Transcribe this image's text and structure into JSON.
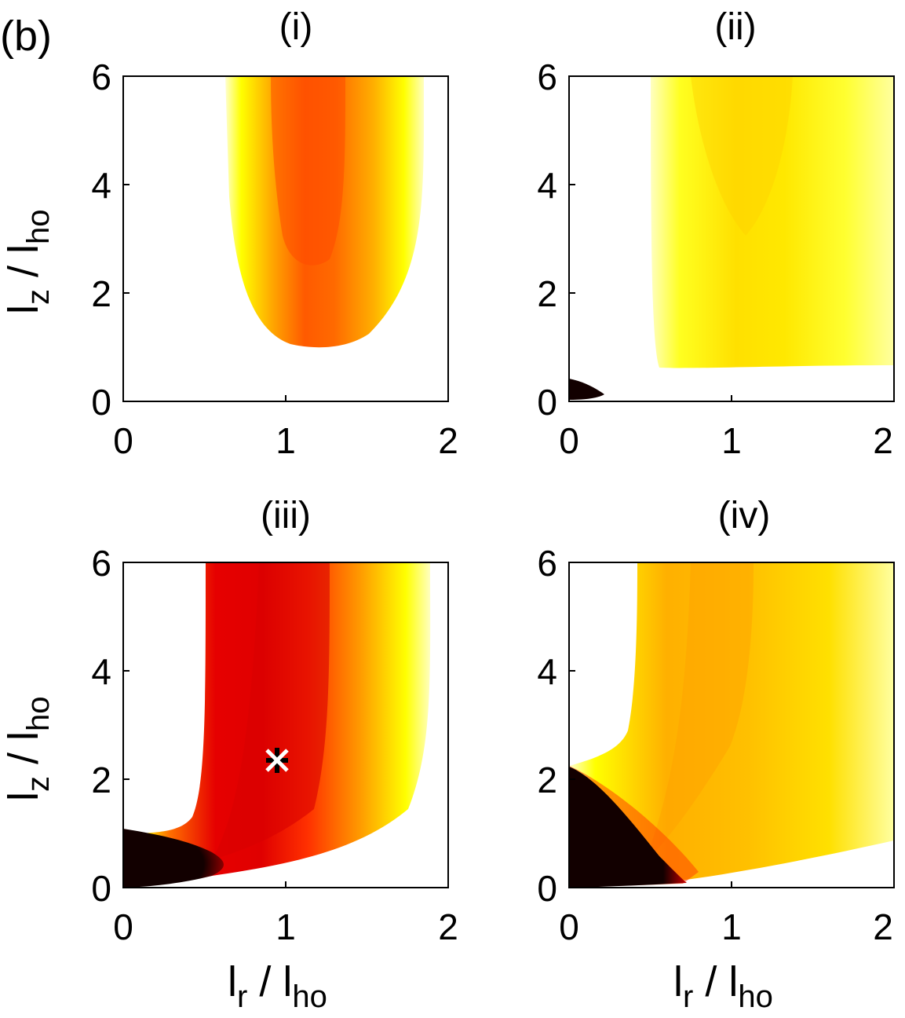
{
  "figure_label": "(b)",
  "colors": {
    "background": "#ffffff",
    "yellow": "#ffff00",
    "orange": "#ff9900",
    "red": "#ee0000",
    "black": "#120000",
    "marker": "#ffffff"
  },
  "chart_data": [
    {
      "type": "heatmap",
      "title": "(i)",
      "xlabel": "",
      "ylabel": "l_z / l_ho",
      "xlim": [
        0,
        2
      ],
      "ylim": [
        0,
        6
      ],
      "xticks": [
        "0",
        "1",
        "2"
      ],
      "yticks": [
        "0",
        "2",
        "4",
        "6"
      ],
      "grid": false,
      "colormap": "hot (white = high, black = low)",
      "features": [
        {
          "name": "",
          "kind": "colored-region",
          "x_range": [
            0.62,
            1.88
          ],
          "y_min": 1.0,
          "peak_color": "orange-red",
          "peak_at": {
            "x": 1.1,
            "y": 6
          }
        }
      ],
      "markers": []
    },
    {
      "type": "heatmap",
      "title": "(ii)",
      "xlabel": "",
      "ylabel": "",
      "xlim": [
        0,
        2
      ],
      "ylim": [
        0,
        6
      ],
      "xticks": [
        "0",
        "1",
        "2"
      ],
      "yticks": [
        "0",
        "2",
        "4",
        "6"
      ],
      "grid": false,
      "colormap": "hot (white = high, black = low)",
      "features": [
        {
          "name": "",
          "kind": "colored-region",
          "x_range": [
            0.5,
            2.0
          ],
          "y_min": 0.6,
          "peak_color": "yellow",
          "peak_at": {
            "x": 1.05,
            "y": 4.5
          }
        },
        {
          "name": "",
          "kind": "black-region",
          "x_range": [
            0.0,
            0.22
          ],
          "y_max": 0.42
        }
      ],
      "markers": []
    },
    {
      "type": "heatmap",
      "title": "(iii)",
      "xlabel": "l_r / l_ho",
      "ylabel": "l_z / l_ho",
      "xlim": [
        0,
        2
      ],
      "ylim": [
        0,
        6
      ],
      "xticks": [
        "0",
        "1",
        "2"
      ],
      "yticks": [
        "0",
        "2",
        "4",
        "6"
      ],
      "grid": false,
      "colormap": "hot (white = high, black = low)",
      "features": [
        {
          "name": "",
          "kind": "colored-region",
          "x_range": [
            0.5,
            1.88
          ],
          "y_min": 0.3,
          "peak_color": "red",
          "peak_at": {
            "x": 0.95,
            "y": 4.0
          }
        },
        {
          "name": "",
          "kind": "black-region",
          "x_range": [
            0.0,
            0.6
          ],
          "y_max": 1.1
        }
      ],
      "markers": [
        {
          "symbol": "asterisk",
          "x": 0.95,
          "y": 2.3
        }
      ]
    },
    {
      "type": "heatmap",
      "title": "(iv)",
      "xlabel": "l_r / l_ho",
      "ylabel": "",
      "xlim": [
        0,
        2
      ],
      "ylim": [
        0,
        6
      ],
      "xticks": [
        "0",
        "1",
        "2"
      ],
      "yticks": [
        "0",
        "2",
        "4",
        "6"
      ],
      "grid": false,
      "colormap": "hot (white = high, black = low)",
      "features": [
        {
          "name": "",
          "kind": "colored-region",
          "x_range": [
            0.3,
            2.0
          ],
          "y_min": 0.2,
          "peak_color": "orange",
          "peak_at": {
            "x": 0.9,
            "y": 5.5
          }
        },
        {
          "name": "",
          "kind": "black-region",
          "x_range": [
            0.0,
            0.72
          ],
          "y_max": 2.15
        }
      ],
      "markers": []
    }
  ],
  "axis_text": {
    "y_main": "l",
    "y_sub": "z",
    "y_sep": " / l",
    "y_sub2": "ho",
    "x_main": "l",
    "x_sub": "r",
    "x_sep": " / l",
    "x_sub2": "ho"
  }
}
